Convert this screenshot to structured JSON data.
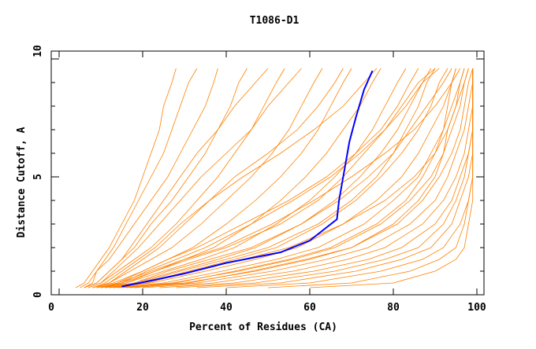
{
  "chart_data": {
    "type": "line",
    "title": "T1086-D1",
    "xlabel": "Percent of Residues (CA)",
    "ylabel": "Distance Cutoff, A",
    "xlim": [
      0,
      100
    ],
    "ylim": [
      0,
      10
    ],
    "xticks": [
      "0",
      "20",
      "40",
      "60",
      "80",
      "100"
    ],
    "yticks": [
      "0",
      "5",
      "10"
    ],
    "grid": false,
    "colors": {
      "models": "#ff8000",
      "highlight": "#0000ff"
    },
    "y_levels": [
      0.3,
      0.5,
      1,
      1.5,
      2,
      3,
      4,
      5,
      6,
      7,
      8,
      9,
      9.6
    ],
    "model_series": [
      [
        4,
        6,
        8,
        10,
        12,
        15,
        18,
        20,
        22,
        24,
        25,
        27,
        28
      ],
      [
        5,
        7,
        9,
        11,
        13,
        16,
        19,
        22,
        25,
        27,
        29,
        31,
        33
      ],
      [
        6,
        8,
        9,
        12,
        14,
        18,
        22,
        26,
        29,
        32,
        35,
        37,
        38
      ],
      [
        6,
        9,
        12,
        15,
        18,
        22,
        27,
        31,
        35,
        38,
        41,
        43,
        45
      ],
      [
        7,
        10,
        14,
        18,
        22,
        28,
        33,
        38,
        42,
        46,
        49,
        52,
        54
      ],
      [
        8,
        12,
        17,
        22,
        27,
        34,
        40,
        46,
        51,
        55,
        58,
        61,
        63
      ],
      [
        8,
        13,
        20,
        26,
        32,
        40,
        47,
        53,
        58,
        62,
        65,
        68,
        70
      ],
      [
        9,
        15,
        23,
        30,
        37,
        46,
        53,
        59,
        64,
        68,
        72,
        75,
        77
      ],
      [
        10,
        16,
        25,
        34,
        42,
        52,
        60,
        66,
        71,
        75,
        78,
        81,
        83
      ],
      [
        10,
        18,
        28,
        38,
        47,
        58,
        66,
        72,
        77,
        81,
        84,
        87,
        89
      ],
      [
        11,
        20,
        31,
        42,
        52,
        63,
        71,
        77,
        82,
        86,
        89,
        91,
        93
      ],
      [
        12,
        22,
        35,
        47,
        57,
        68,
        76,
        82,
        86,
        89,
        92,
        94,
        95
      ],
      [
        13,
        25,
        39,
        52,
        62,
        73,
        80,
        86,
        89,
        92,
        94,
        96,
        97
      ],
      [
        14,
        27,
        43,
        56,
        66,
        77,
        84,
        89,
        92,
        94,
        96,
        97,
        98
      ],
      [
        15,
        30,
        47,
        60,
        70,
        81,
        87,
        91,
        94,
        96,
        97,
        98,
        99
      ],
      [
        17,
        33,
        51,
        64,
        74,
        84,
        90,
        93,
        95,
        97,
        98,
        99,
        99
      ],
      [
        20,
        37,
        56,
        69,
        78,
        87,
        92,
        95,
        97,
        98,
        99,
        99,
        99
      ],
      [
        24,
        42,
        61,
        74,
        82,
        90,
        94,
        96,
        98,
        99,
        99,
        99,
        99
      ],
      [
        28,
        47,
        66,
        78,
        86,
        92,
        95,
        97,
        98,
        99,
        99,
        99,
        99
      ],
      [
        33,
        53,
        71,
        82,
        89,
        94,
        96,
        98,
        99,
        99,
        99,
        99,
        99
      ],
      [
        40,
        60,
        77,
        87,
        92,
        96,
        98,
        99,
        99,
        99,
        99,
        99,
        99
      ],
      [
        50,
        70,
        84,
        91,
        95,
        97,
        98,
        99,
        99,
        99,
        99,
        99,
        99
      ],
      [
        60,
        80,
        90,
        95,
        97,
        98,
        99,
        99,
        99,
        99,
        99,
        99,
        99
      ],
      [
        9,
        12,
        16,
        20,
        24,
        30,
        36,
        42,
        50,
        57,
        62,
        66,
        68
      ],
      [
        8,
        11,
        15,
        19,
        23,
        29,
        36,
        44,
        53,
        61,
        68,
        73,
        76
      ],
      [
        10,
        14,
        20,
        26,
        33,
        44,
        55,
        64,
        71,
        77,
        81,
        84,
        86
      ],
      [
        11,
        16,
        23,
        31,
        40,
        53,
        62,
        68,
        73,
        78,
        82,
        86,
        90
      ],
      [
        12,
        18,
        26,
        36,
        46,
        58,
        67,
        74,
        80,
        84,
        88,
        92,
        94
      ],
      [
        9,
        14,
        22,
        30,
        39,
        51,
        61,
        70,
        78,
        85,
        90,
        94,
        96
      ],
      [
        13,
        21,
        32,
        44,
        55,
        68,
        78,
        85,
        90,
        93,
        95,
        97,
        98
      ],
      [
        7,
        10,
        13,
        16,
        19,
        24,
        29,
        34,
        40,
        46,
        50,
        55,
        58
      ],
      [
        6,
        9,
        12,
        15,
        17,
        21,
        25,
        29,
        33,
        38,
        42,
        47,
        50
      ],
      [
        16,
        28,
        42,
        55,
        65,
        76,
        83,
        87,
        90,
        92,
        93,
        94,
        95
      ],
      [
        18,
        31,
        46,
        59,
        70,
        80,
        86,
        90,
        92,
        93,
        95,
        96,
        97
      ],
      [
        12,
        19,
        29,
        40,
        50,
        62,
        70,
        76,
        80,
        83,
        86,
        88,
        90
      ],
      [
        10,
        15,
        21,
        28,
        35,
        46,
        56,
        65,
        72,
        78,
        83,
        87,
        91
      ]
    ],
    "highlight_series": {
      "x": [
        15,
        22,
        30,
        40,
        53,
        60,
        66.5,
        67,
        68,
        69.5,
        71,
        73,
        75
      ],
      "y": [
        0.35,
        0.6,
        0.9,
        1.35,
        1.8,
        2.3,
        3.2,
        4,
        5,
        6.5,
        7.5,
        8.7,
        9.5
      ]
    }
  }
}
